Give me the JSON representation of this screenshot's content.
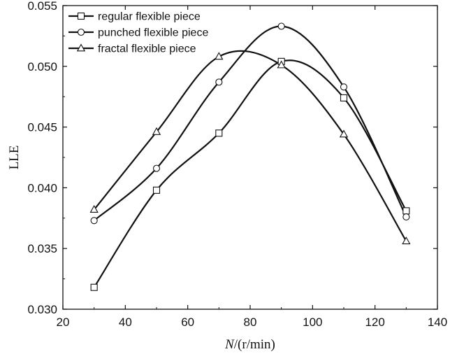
{
  "chart_data": {
    "type": "line",
    "xlabel": "N/(r/min)",
    "xlabel_var": "N",
    "xlabel_unit": "/(r/min)",
    "ylabel": "LLE",
    "xlim": [
      20,
      140
    ],
    "ylim": [
      0.03,
      0.055
    ],
    "xticks": [
      20,
      40,
      60,
      80,
      100,
      120,
      140
    ],
    "yticks": [
      0.03,
      0.035,
      0.04,
      0.045,
      0.05,
      0.055
    ],
    "ytick_labels": [
      "0.030",
      "0.035",
      "0.040",
      "0.045",
      "0.050",
      "0.055"
    ],
    "grid": false,
    "legend_position": "top-left",
    "series": [
      {
        "name": "regular flexible piece",
        "marker": "square",
        "x": [
          30,
          50,
          70,
          90,
          110,
          130
        ],
        "y": [
          0.0318,
          0.0398,
          0.0445,
          0.0504,
          0.0474,
          0.0381
        ]
      },
      {
        "name": "punched flexible piece",
        "marker": "circle",
        "x": [
          30,
          50,
          70,
          90,
          110,
          130
        ],
        "y": [
          0.0373,
          0.0416,
          0.0487,
          0.0533,
          0.0483,
          0.0376
        ]
      },
      {
        "name": "fractal flexible piece",
        "marker": "triangle",
        "x": [
          30,
          50,
          70,
          90,
          110,
          130
        ],
        "y": [
          0.0382,
          0.0446,
          0.0508,
          0.0501,
          0.0444,
          0.0356
        ]
      }
    ]
  }
}
